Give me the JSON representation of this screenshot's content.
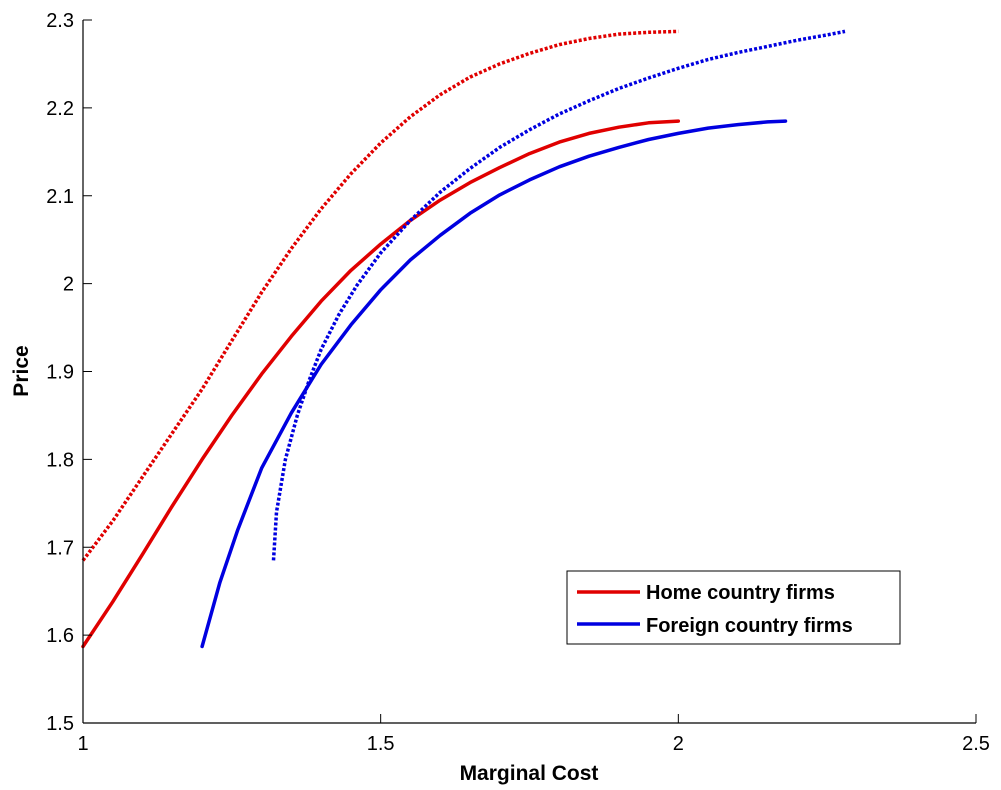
{
  "chart_data": {
    "type": "line",
    "title": "",
    "xlabel": "Marginal Cost",
    "ylabel": "Price",
    "xlim": [
      1,
      2.5
    ],
    "ylim": [
      1.5,
      2.3
    ],
    "xticks": [
      1,
      1.5,
      2,
      2.5
    ],
    "xtick_labels": [
      "1",
      "1.5",
      "2",
      "2.5"
    ],
    "yticks": [
      1.5,
      1.6,
      1.7,
      1.8,
      1.9,
      2.0,
      2.1,
      2.2,
      2.3
    ],
    "ytick_labels": [
      "1.5",
      "1.6",
      "1.7",
      "1.8",
      "1.9",
      "2",
      "2.1",
      "2.2",
      "2.3"
    ],
    "grid": false,
    "legend": {
      "position": "bottom-right",
      "entries": [
        "Home country firms",
        "Foreign country firms"
      ]
    },
    "series": [
      {
        "name": "Home country firms",
        "color": "#e00000",
        "style": "solid",
        "x": [
          1.0,
          1.05,
          1.1,
          1.15,
          1.2,
          1.25,
          1.3,
          1.35,
          1.4,
          1.45,
          1.5,
          1.55,
          1.6,
          1.65,
          1.7,
          1.75,
          1.8,
          1.85,
          1.9,
          1.95,
          2.0
        ],
        "y": [
          1.587,
          1.638,
          1.692,
          1.747,
          1.8,
          1.85,
          1.897,
          1.94,
          1.98,
          2.015,
          2.045,
          2.072,
          2.095,
          2.115,
          2.132,
          2.148,
          2.161,
          2.171,
          2.178,
          2.183,
          2.185
        ]
      },
      {
        "name": "Home country firms (dotted)",
        "color": "#e00000",
        "style": "dotted",
        "x": [
          1.0,
          1.05,
          1.1,
          1.15,
          1.2,
          1.25,
          1.3,
          1.35,
          1.4,
          1.45,
          1.5,
          1.55,
          1.6,
          1.65,
          1.7,
          1.75,
          1.8,
          1.85,
          1.9,
          1.95,
          2.0
        ],
        "y": [
          1.685,
          1.73,
          1.78,
          1.83,
          1.88,
          1.935,
          1.99,
          2.04,
          2.085,
          2.125,
          2.16,
          2.19,
          2.215,
          2.235,
          2.25,
          2.262,
          2.272,
          2.279,
          2.284,
          2.286,
          2.287
        ]
      },
      {
        "name": "Foreign country firms",
        "color": "#0000e0",
        "style": "solid",
        "x": [
          1.2,
          1.23,
          1.26,
          1.3,
          1.35,
          1.4,
          1.45,
          1.5,
          1.55,
          1.6,
          1.65,
          1.7,
          1.75,
          1.8,
          1.85,
          1.9,
          1.95,
          2.0,
          2.05,
          2.1,
          2.15,
          2.18
        ],
        "y": [
          1.587,
          1.66,
          1.72,
          1.79,
          1.853,
          1.908,
          1.953,
          1.993,
          2.027,
          2.055,
          2.08,
          2.101,
          2.118,
          2.133,
          2.145,
          2.155,
          2.164,
          2.171,
          2.177,
          2.181,
          2.184,
          2.185
        ]
      },
      {
        "name": "Foreign country firms (dotted)",
        "color": "#0000e0",
        "style": "dotted",
        "x": [
          1.32,
          1.325,
          1.34,
          1.36,
          1.38,
          1.4,
          1.43,
          1.46,
          1.5,
          1.55,
          1.6,
          1.65,
          1.7,
          1.75,
          1.8,
          1.85,
          1.9,
          1.95,
          2.0,
          2.05,
          2.1,
          2.15,
          2.2,
          2.25,
          2.28
        ],
        "y": [
          1.685,
          1.74,
          1.8,
          1.85,
          1.89,
          1.925,
          1.965,
          1.998,
          2.035,
          2.072,
          2.104,
          2.131,
          2.155,
          2.175,
          2.193,
          2.208,
          2.222,
          2.234,
          2.245,
          2.255,
          2.263,
          2.27,
          2.277,
          2.283,
          2.287
        ]
      }
    ]
  }
}
